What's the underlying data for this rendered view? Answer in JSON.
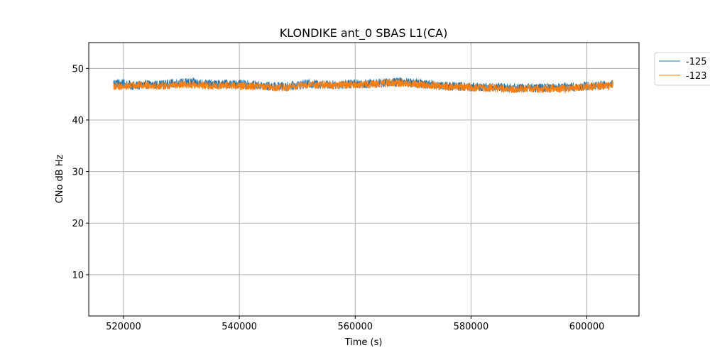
{
  "chart_data": {
    "type": "line",
    "title": "KLONDIKE ant_0 SBAS L1(CA)",
    "xlabel": "Time (s)",
    "ylabel": "CNo dB Hz",
    "xlim": [
      514000,
      609000
    ],
    "ylim": [
      2,
      55
    ],
    "xticks": [
      520000,
      540000,
      560000,
      580000,
      600000
    ],
    "yticks": [
      10,
      20,
      30,
      40,
      50
    ],
    "grid": true,
    "legend_position": "outside top-right",
    "series": [
      {
        "name": "-125",
        "color": "#1f77b4",
        "x": [
          518300,
          520000,
          522000,
          524000,
          526000,
          528000,
          530000,
          532000,
          534000,
          536000,
          538000,
          540000,
          542000,
          544000,
          546000,
          548000,
          550000,
          552000,
          554000,
          556000,
          558000,
          560000,
          562000,
          564000,
          566000,
          568000,
          570000,
          572000,
          574000,
          576000,
          578000,
          580000,
          582000,
          584000,
          586000,
          588000,
          590000,
          592000,
          594000,
          596000,
          598000,
          600000,
          602000,
          604000,
          604500
        ],
        "y": [
          47.2,
          47.0,
          46.6,
          46.9,
          46.8,
          47.0,
          47.2,
          47.3,
          47.0,
          46.9,
          47.0,
          46.9,
          46.8,
          46.6,
          46.5,
          46.5,
          46.8,
          47.0,
          46.9,
          46.8,
          46.9,
          47.1,
          47.0,
          47.1,
          47.3,
          47.4,
          47.2,
          47.0,
          46.8,
          46.6,
          46.5,
          46.4,
          46.3,
          46.4,
          46.3,
          46.2,
          46.3,
          46.2,
          46.3,
          46.4,
          46.4,
          46.6,
          46.7,
          46.8,
          47.2
        ]
      },
      {
        "name": "-123",
        "color": "#ff7f0e",
        "x": [
          518300,
          520000,
          522000,
          524000,
          526000,
          528000,
          530000,
          532000,
          534000,
          536000,
          538000,
          540000,
          542000,
          544000,
          546000,
          548000,
          550000,
          552000,
          554000,
          556000,
          558000,
          560000,
          562000,
          564000,
          566000,
          568000,
          570000,
          572000,
          574000,
          576000,
          578000,
          580000,
          582000,
          584000,
          586000,
          588000,
          590000,
          592000,
          594000,
          596000,
          598000,
          600000,
          602000,
          604000,
          604500
        ],
        "y": [
          46.6,
          46.5,
          46.7,
          46.8,
          46.6,
          46.7,
          46.9,
          46.8,
          46.7,
          46.6,
          46.7,
          46.6,
          46.5,
          46.4,
          46.3,
          46.3,
          46.6,
          46.8,
          46.8,
          46.7,
          46.8,
          46.9,
          46.9,
          47.0,
          47.1,
          47.2,
          47.0,
          46.8,
          46.6,
          46.4,
          46.4,
          46.3,
          46.2,
          46.2,
          46.0,
          46.0,
          46.1,
          46.0,
          46.1,
          46.0,
          46.2,
          46.4,
          46.5,
          46.6,
          47.0
        ]
      }
    ]
  }
}
